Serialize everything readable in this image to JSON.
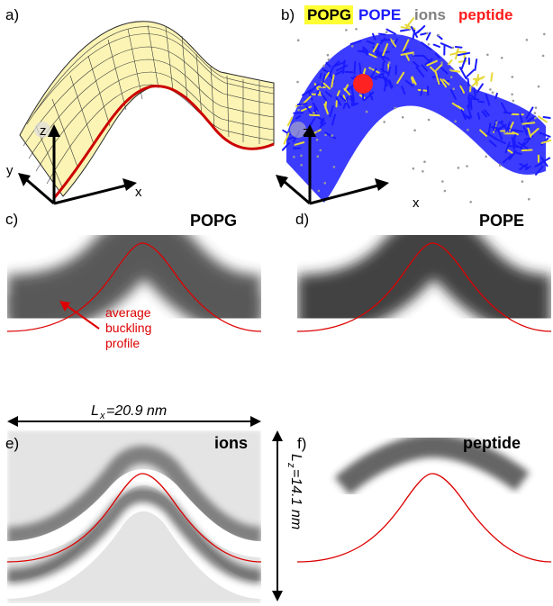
{
  "panels": {
    "a": {
      "label": "a)",
      "axes": {
        "x": "x",
        "y": "y",
        "z": "z"
      }
    },
    "b": {
      "label": "b)",
      "axes": {
        "x": "x",
        "y": "y",
        "z": "z"
      },
      "legend": [
        {
          "text": "POPG",
          "color": "#000000",
          "highlight": "#ffff33"
        },
        {
          "text": "POPE",
          "color": "#1a1aff"
        },
        {
          "text": "ions",
          "color": "#808080"
        },
        {
          "text": "peptide",
          "color": "#ff0000"
        }
      ]
    },
    "c": {
      "label": "c)",
      "title": "POPG",
      "annotation": [
        "average",
        "buckling",
        "profile"
      ]
    },
    "d": {
      "label": "d)",
      "title": "POPE"
    },
    "e": {
      "label": "e)",
      "title": "ions"
    },
    "f": {
      "label": "f)",
      "title": "peptide"
    }
  },
  "dimensions": {
    "lx_symbol": "L",
    "lx_sub": "x",
    "lx_value": "=20.9 nm",
    "lz_symbol": "L",
    "lz_sub": "z",
    "lz_value": "=14.1 nm"
  },
  "colors": {
    "profile_line": "#dd0000",
    "surface_fill": "#fbf4b4",
    "surface_edge": "#cc0000",
    "pope": "#1a1aff",
    "popg": "#e6d93a",
    "peptide": "#ff1a1a"
  }
}
